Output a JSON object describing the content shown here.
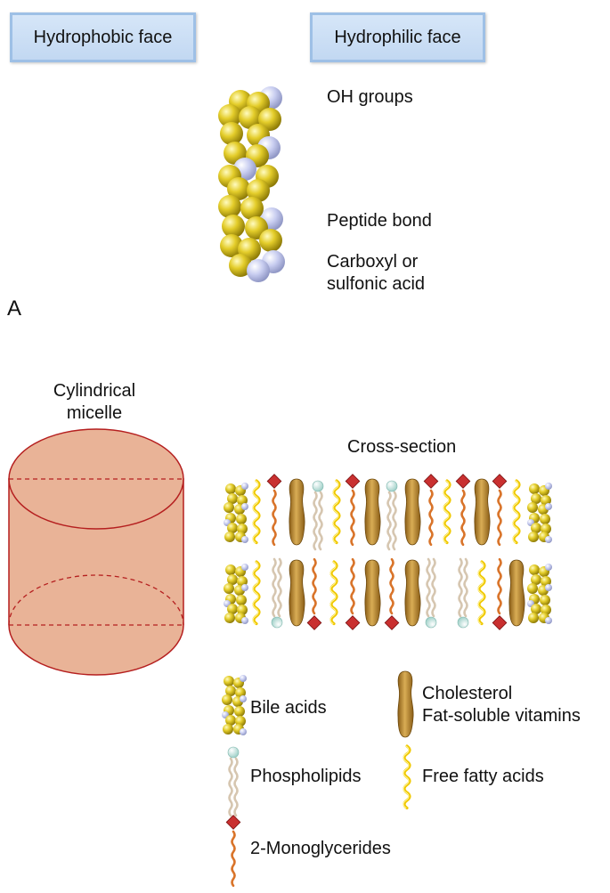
{
  "panel_a": {
    "hydrophobic_face": "Hydrophobic face",
    "hydrophilic_face": "Hydrophilic face",
    "oh_groups": "OH groups",
    "peptide_bond": "Peptide bond",
    "carboxyl_line1": "Carboxyl or",
    "carboxyl_line2": "sulfonic acid",
    "panel_letter": "A"
  },
  "panel_b": {
    "cylinder_line1": "Cylindrical",
    "cylinder_line2": "micelle",
    "cross_section": "Cross-section"
  },
  "legend": {
    "bile_acids": "Bile acids",
    "cholesterol": "Cholesterol",
    "fat_soluble_vitamins": "Fat-soluble vitamins",
    "phospholipids": "Phospholipids",
    "free_fatty_acids": "Free fatty acids",
    "monoglycerides": "2-Monoglycerides"
  },
  "colors": {
    "bile_yellow": "#d9c21c",
    "bile_blue": "#c3c8ea",
    "cylinder_fill": "#e9b397",
    "cylinder_stroke": "#b51f1f",
    "cholesterol": "#b8892e",
    "fatty_acid": "#f0c800",
    "monoglyceride": "#d9742a",
    "monoglyceride_head": "#c93030",
    "phospholipid": "#d6c6b0",
    "phospholipid_head": "#cde8e2"
  }
}
